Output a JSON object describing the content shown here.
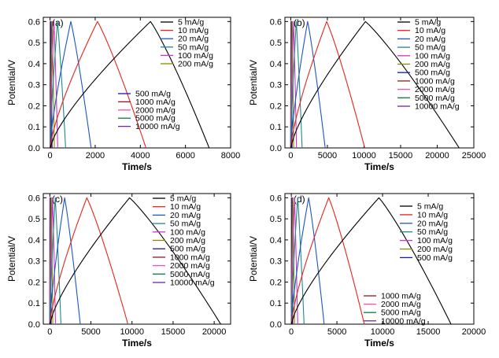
{
  "chart_data": [
    {
      "type": "line",
      "panel_label": "(a)",
      "xlabel": "Time/s",
      "ylabel": "Potential/V",
      "xlim": [
        -300,
        8000
      ],
      "ylim": [
        0,
        0.62
      ],
      "xticks": [
        0,
        2000,
        4000,
        6000,
        8000
      ],
      "yticks": [
        0.0,
        0.1,
        0.2,
        0.3,
        0.4,
        0.5,
        0.6
      ],
      "legend_groups": [
        {
          "position": "top-right",
          "items": [
            "5 mA/g",
            "10 mA/g",
            "20 mA/g",
            "50 mA/g",
            "100 mA/g",
            "200 mA/g"
          ]
        },
        {
          "position": "center-right",
          "items": [
            "500 mA/g",
            "1000 mA/g",
            "2000 mA/g",
            "5000 mA/g",
            "10000 mA/g"
          ]
        }
      ],
      "series": [
        {
          "name": "5 mA/g",
          "color": "#000000",
          "charge_end": 4450,
          "discharge_end": 7050
        },
        {
          "name": "10 mA/g",
          "color": "#e8231d",
          "charge_end": 2100,
          "discharge_end": 4250
        },
        {
          "name": "20 mA/g",
          "color": "#1a56c4",
          "charge_end": 920,
          "discharge_end": 1820
        },
        {
          "name": "50 mA/g",
          "color": "#1d8a8a",
          "charge_end": 330,
          "discharge_end": 690
        },
        {
          "name": "100 mA/g",
          "color": "#cc33cc",
          "charge_end": 170,
          "discharge_end": 340
        },
        {
          "name": "200 mA/g",
          "color": "#8a8a00",
          "charge_end": 95,
          "discharge_end": 190
        },
        {
          "name": "500 mA/g",
          "color": "#1a1aa0",
          "charge_end": 45,
          "discharge_end": 90
        },
        {
          "name": "1000 mA/g",
          "color": "#8a1c1c",
          "charge_end": 25,
          "discharge_end": 50
        },
        {
          "name": "2000 mA/g",
          "color": "#ff4da6",
          "charge_end": 14,
          "discharge_end": 28
        },
        {
          "name": "5000 mA/g",
          "color": "#0f7a3a",
          "charge_end": 7,
          "discharge_end": 14
        },
        {
          "name": "10000 mA/g",
          "color": "#6a2aa0",
          "charge_end": 4,
          "discharge_end": 8
        }
      ]
    },
    {
      "type": "line",
      "panel_label": "(b)",
      "xlabel": "Time/s",
      "ylabel": "Potential/V",
      "xlim": [
        -800,
        25000
      ],
      "ylim": [
        0,
        0.62
      ],
      "xticks": [
        0,
        5000,
        10000,
        15000,
        20000,
        25000
      ],
      "yticks": [
        0.0,
        0.1,
        0.2,
        0.3,
        0.4,
        0.5,
        0.6
      ],
      "legend_groups": [
        {
          "position": "top-right",
          "items": [
            "5 mA/g",
            "10 mA/g",
            "20 mA/g",
            "50 mA/g",
            "100 mA/g",
            "200 mA/g",
            "500 mA/g",
            "1000 mA/g",
            "2000 mA/g",
            "5000 mA/g",
            "10000 mA/g"
          ]
        }
      ],
      "series": [
        {
          "name": "5 mA/g",
          "color": "#000000",
          "charge_end": 10200,
          "discharge_end": 23000
        },
        {
          "name": "10 mA/g",
          "color": "#e8231d",
          "charge_end": 4900,
          "discharge_end": 10100
        },
        {
          "name": "20 mA/g",
          "color": "#1a56c4",
          "charge_end": 2300,
          "discharge_end": 4700
        },
        {
          "name": "50 mA/g",
          "color": "#1d8a8a",
          "charge_end": 750,
          "discharge_end": 1550
        },
        {
          "name": "100 mA/g",
          "color": "#cc33cc",
          "charge_end": 380,
          "discharge_end": 780
        },
        {
          "name": "200 mA/g",
          "color": "#8a8a00",
          "charge_end": 200,
          "discharge_end": 400
        },
        {
          "name": "500 mA/g",
          "color": "#1a1aa0",
          "charge_end": 90,
          "discharge_end": 180
        },
        {
          "name": "1000 mA/g",
          "color": "#8a1c1c",
          "charge_end": 50,
          "discharge_end": 100
        },
        {
          "name": "2000 mA/g",
          "color": "#ff4da6",
          "charge_end": 26,
          "discharge_end": 52
        },
        {
          "name": "5000 mA/g",
          "color": "#0f7a3a",
          "charge_end": 12,
          "discharge_end": 24
        },
        {
          "name": "10000 mA/g",
          "color": "#6a2aa0",
          "charge_end": 6,
          "discharge_end": 12
        }
      ]
    },
    {
      "type": "line",
      "panel_label": "(c)",
      "xlabel": "Time/s",
      "ylabel": "Potential/V",
      "xlim": [
        -800,
        22000
      ],
      "ylim": [
        0,
        0.62
      ],
      "xticks": [
        0,
        5000,
        10000,
        15000,
        20000
      ],
      "yticks": [
        0.0,
        0.1,
        0.2,
        0.3,
        0.4,
        0.5,
        0.6
      ],
      "legend_groups": [
        {
          "position": "top-right",
          "items": [
            "5 mA/g",
            "10 mA/g",
            "20 mA/g",
            "50 mA/g",
            "100 mA/g",
            "200 mA/g",
            "500 mA/g",
            "1000 mA/g",
            "2000 mA/g",
            "5000 mA/g",
            "10000 mA/g"
          ]
        }
      ],
      "series": [
        {
          "name": "5 mA/g",
          "color": "#000000",
          "charge_end": 9700,
          "discharge_end": 20800
        },
        {
          "name": "10 mA/g",
          "color": "#e8231d",
          "charge_end": 4500,
          "discharge_end": 9500
        },
        {
          "name": "20 mA/g",
          "color": "#1a56c4",
          "charge_end": 1800,
          "discharge_end": 3700
        },
        {
          "name": "50 mA/g",
          "color": "#1d8a8a",
          "charge_end": 650,
          "discharge_end": 1350
        },
        {
          "name": "100 mA/g",
          "color": "#cc33cc",
          "charge_end": 330,
          "discharge_end": 680
        },
        {
          "name": "200 mA/g",
          "color": "#8a8a00",
          "charge_end": 180,
          "discharge_end": 360
        },
        {
          "name": "500 mA/g",
          "color": "#1a1aa0",
          "charge_end": 80,
          "discharge_end": 160
        },
        {
          "name": "1000 mA/g",
          "color": "#8a1c1c",
          "charge_end": 45,
          "discharge_end": 90
        },
        {
          "name": "2000 mA/g",
          "color": "#ff4da6",
          "charge_end": 24,
          "discharge_end": 48
        },
        {
          "name": "5000 mA/g",
          "color": "#0f7a3a",
          "charge_end": 11,
          "discharge_end": 22
        },
        {
          "name": "10000 mA/g",
          "color": "#6a2aa0",
          "charge_end": 6,
          "discharge_end": 12
        }
      ]
    },
    {
      "type": "line",
      "panel_label": "(d)",
      "xlabel": "Time/s",
      "ylabel": "Potential/V",
      "xlim": [
        -700,
        20000
      ],
      "ylim": [
        0,
        0.62
      ],
      "xticks": [
        0,
        5000,
        10000,
        15000,
        20000
      ],
      "yticks": [
        0.0,
        0.1,
        0.2,
        0.3,
        0.4,
        0.5,
        0.6
      ],
      "legend_groups": [
        {
          "position": "top-right",
          "items": [
            "5 mA/g",
            "10 mA/g",
            "20 mA/g",
            "50 mA/g",
            "100 mA/g",
            "200 mA/g",
            "500 mA/g"
          ]
        },
        {
          "position": "bottom-center",
          "items": [
            "1000 mA/g",
            "2000 mA/g",
            "5000 mA/g",
            "10000 mA/g"
          ]
        }
      ],
      "series": [
        {
          "name": "5 mA/g",
          "color": "#000000",
          "charge_end": 9600,
          "discharge_end": 17500
        },
        {
          "name": "10 mA/g",
          "color": "#e8231d",
          "charge_end": 4100,
          "discharge_end": 8000
        },
        {
          "name": "20 mA/g",
          "color": "#1a56c4",
          "charge_end": 1900,
          "discharge_end": 3600
        },
        {
          "name": "50 mA/g",
          "color": "#1d8a8a",
          "charge_end": 700,
          "discharge_end": 1400
        },
        {
          "name": "100 mA/g",
          "color": "#cc33cc",
          "charge_end": 350,
          "discharge_end": 700
        },
        {
          "name": "200 mA/g",
          "color": "#8a8a00",
          "charge_end": 180,
          "discharge_end": 360
        },
        {
          "name": "500 mA/g",
          "color": "#1a1aa0",
          "charge_end": 80,
          "discharge_end": 160
        },
        {
          "name": "1000 mA/g",
          "color": "#8a1c1c",
          "charge_end": 45,
          "discharge_end": 90
        },
        {
          "name": "2000 mA/g",
          "color": "#ff4da6",
          "charge_end": 24,
          "discharge_end": 48
        },
        {
          "name": "5000 mA/g",
          "color": "#0f7a3a",
          "charge_end": 11,
          "discharge_end": 22
        },
        {
          "name": "10000 mA/g",
          "color": "#6a2aa0",
          "charge_end": 6,
          "discharge_end": 12
        }
      ]
    }
  ]
}
